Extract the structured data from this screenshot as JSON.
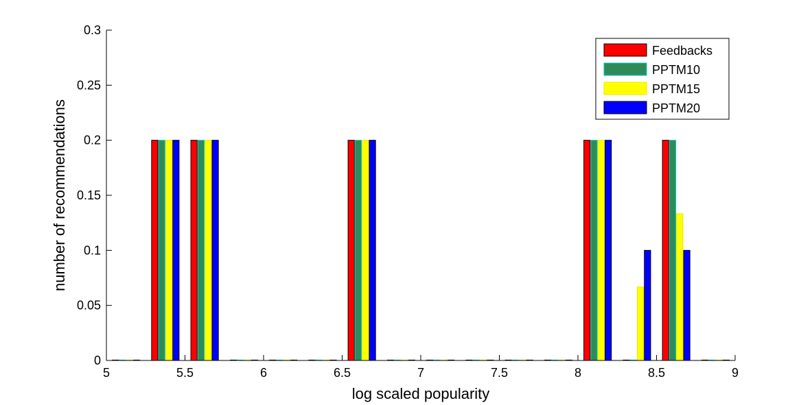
{
  "chart_data": {
    "type": "bar",
    "title": "",
    "xlabel": "log scaled popularity",
    "ylabel": "number of recommendations",
    "xlim": [
      5,
      9
    ],
    "ylim": [
      0,
      0.3
    ],
    "x_ticks": [
      5,
      5.5,
      6,
      6.5,
      7,
      7.5,
      8,
      8.5,
      9
    ],
    "x_tick_labels": [
      "5",
      "5.5",
      "6",
      "6.5",
      "7",
      "7.5",
      "8",
      "8.5",
      "9"
    ],
    "y_ticks": [
      0,
      0.05,
      0.1,
      0.15,
      0.2,
      0.25,
      0.3
    ],
    "y_tick_labels": [
      "0",
      "0.05",
      "0.1",
      "0.15",
      "0.2",
      "0.25",
      "0.3"
    ],
    "grid": false,
    "legend_position": "top-right",
    "x": [
      5.125,
      5.375,
      5.625,
      5.875,
      6.125,
      6.375,
      6.625,
      6.875,
      7.125,
      7.375,
      7.625,
      7.875,
      8.125,
      8.375,
      8.625,
      8.875
    ],
    "series": [
      {
        "name": "Feedbacks",
        "color": "#ff0000",
        "edge": "#000000",
        "values": [
          0,
          0.2,
          0.2,
          0,
          0,
          0,
          0.2,
          0,
          0,
          0,
          0,
          0,
          0.2,
          0,
          0.2,
          0
        ]
      },
      {
        "name": "PPTM10",
        "color": "#2e8b57",
        "edge": "#00c8c8",
        "values": [
          0,
          0.2,
          0.2,
          0,
          0,
          0,
          0.2,
          0,
          0,
          0,
          0,
          0,
          0.2,
          0,
          0.2,
          0
        ]
      },
      {
        "name": "PPTM15",
        "color": "#ffff00",
        "edge": "#e8e800",
        "values": [
          0,
          0.2,
          0.2,
          0,
          0,
          0,
          0.2,
          0,
          0,
          0,
          0,
          0,
          0.2,
          0.0667,
          0.1333,
          0
        ]
      },
      {
        "name": "PPTM20",
        "color": "#0000ff",
        "edge": "#000000",
        "values": [
          0,
          0.2,
          0.2,
          0,
          0,
          0,
          0.2,
          0,
          0,
          0,
          0,
          0,
          0.2,
          0.1,
          0.1,
          0
        ]
      }
    ]
  }
}
